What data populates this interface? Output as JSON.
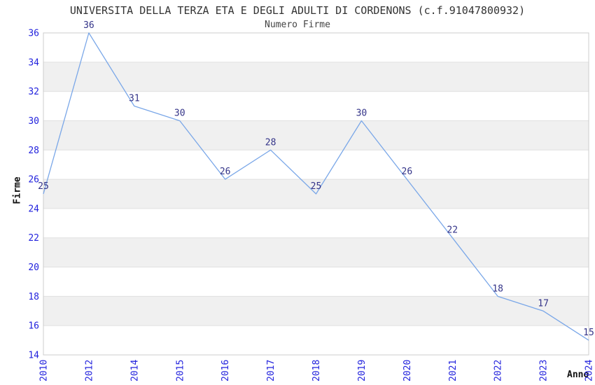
{
  "chart_data": {
    "type": "line",
    "title": "UNIVERSITA DELLA TERZA ETA E DEGLI ADULTI DI CORDENONS (c.f.91047800932)",
    "subtitle": "Numero Firme",
    "xlabel": "Anno",
    "ylabel": "Firme",
    "categories": [
      "2010",
      "2012",
      "2014",
      "2015",
      "2016",
      "2017",
      "2018",
      "2019",
      "2020",
      "2021",
      "2022",
      "2023",
      "2024"
    ],
    "values": [
      25,
      36,
      31,
      30,
      26,
      28,
      25,
      30,
      26,
      22,
      18,
      17,
      15
    ],
    "ylim": [
      14,
      36
    ],
    "ytick_step": 2,
    "yticks": [
      14,
      16,
      18,
      20,
      22,
      24,
      26,
      28,
      30,
      32,
      34,
      36
    ],
    "grid": "horizontal",
    "band_pattern": "alternating-gray",
    "legend_position": "none",
    "point_labels_visible": true,
    "colors": {
      "line": "#7AA7E8",
      "tick_label": "#2222DD",
      "point_label": "#333388",
      "band": "#F0F0F0",
      "gridline": "#E0E0E0",
      "plot_border": "#CCCCCC",
      "title_text": "#333333",
      "axis_title_text": "#111111",
      "background": "#FFFFFF"
    }
  }
}
